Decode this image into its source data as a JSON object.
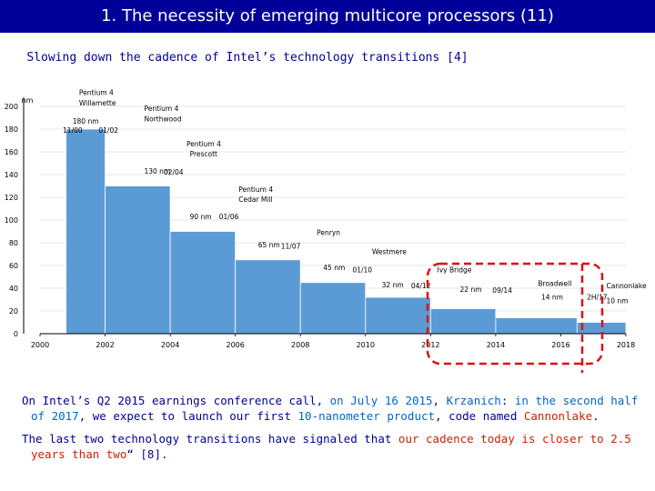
{
  "slide": {
    "title": "1. The necessity of emerging multicore processors (11)",
    "subtitle": "Slowing down the cadence of Intel’s technology transitions [4]"
  },
  "chart_data": {
    "type": "area",
    "ylabel": "nm",
    "xlim": [
      2000,
      2018
    ],
    "ylim": [
      0,
      200
    ],
    "x_ticks": [
      2000,
      2002,
      2004,
      2006,
      2008,
      2010,
      2012,
      2014,
      2016,
      2018
    ],
    "y_ticks": [
      0,
      20,
      40,
      60,
      80,
      100,
      120,
      140,
      160,
      180,
      200
    ],
    "steps": [
      {
        "start": 2000.8,
        "end": 2002.0,
        "value": 180
      },
      {
        "start": 2002.0,
        "end": 2004.0,
        "value": 130
      },
      {
        "start": 2004.0,
        "end": 2006.0,
        "value": 90
      },
      {
        "start": 2006.0,
        "end": 2008.0,
        "value": 65
      },
      {
        "start": 2008.0,
        "end": 2010.0,
        "value": 45
      },
      {
        "start": 2010.0,
        "end": 2012.0,
        "value": 32
      },
      {
        "start": 2012.0,
        "end": 2014.0,
        "value": 22
      },
      {
        "start": 2014.0,
        "end": 2016.5,
        "value": 14
      },
      {
        "start": 2016.5,
        "end": 2018.0,
        "value": 10
      }
    ],
    "annotations": [
      {
        "text": "Pentium 4",
        "x": 2001.2,
        "y": 210
      },
      {
        "text": "Willamette",
        "x": 2001.2,
        "y": 201
      },
      {
        "text": "180 nm",
        "x": 2001.0,
        "y": 185
      },
      {
        "text": "11/00",
        "x": 2000.7,
        "y": 177
      },
      {
        "text": "01/02",
        "x": 2001.8,
        "y": 177
      },
      {
        "text": "Pentium 4",
        "x": 2003.2,
        "y": 196
      },
      {
        "text": "Northwood",
        "x": 2003.2,
        "y": 187
      },
      {
        "text": "Pentium 4",
        "x": 2004.5,
        "y": 165
      },
      {
        "text": "Prescott",
        "x": 2004.6,
        "y": 156
      },
      {
        "text": "130 nm",
        "x": 2003.2,
        "y": 141
      },
      {
        "text": "02/04",
        "x": 2003.8,
        "y": 140
      },
      {
        "text": "Pentium 4",
        "x": 2006.1,
        "y": 125
      },
      {
        "text": "Cedar Mill",
        "x": 2006.1,
        "y": 116
      },
      {
        "text": "90 nm",
        "x": 2004.6,
        "y": 101
      },
      {
        "text": "01/06",
        "x": 2005.5,
        "y": 101
      },
      {
        "text": "Penryn",
        "x": 2008.5,
        "y": 87
      },
      {
        "text": "65 nm",
        "x": 2006.7,
        "y": 76
      },
      {
        "text": "11/07",
        "x": 2007.4,
        "y": 75
      },
      {
        "text": "Westmere",
        "x": 2010.2,
        "y": 70
      },
      {
        "text": "45 nm",
        "x": 2008.7,
        "y": 56
      },
      {
        "text": "01/10",
        "x": 2009.6,
        "y": 54
      },
      {
        "text": "Ivy Bridge",
        "x": 2012.2,
        "y": 54
      },
      {
        "text": "32 nm",
        "x": 2010.5,
        "y": 41
      },
      {
        "text": "04/12",
        "x": 2011.4,
        "y": 40
      },
      {
        "text": "Broadwell",
        "x": 2015.3,
        "y": 42
      },
      {
        "text": "22 nm",
        "x": 2012.9,
        "y": 37
      },
      {
        "text": "09/14",
        "x": 2013.9,
        "y": 36
      },
      {
        "text": "Cannonlake",
        "x": 2017.4,
        "y": 40
      },
      {
        "text": "14 nm",
        "x": 2015.4,
        "y": 30
      },
      {
        "text": "2H/17",
        "x": 2016.8,
        "y": 30
      },
      {
        "text": "10 nm",
        "x": 2017.4,
        "y": 27
      }
    ]
  },
  "captions": {
    "p1_a": "On Intel’s Q2 2015 earnings conference call, ",
    "p1_b": "on July 16 2015",
    "p1_c": ",  ",
    "p1_d": "Krzanich",
    "p1_e": ": ",
    "p1_f": "in the second half of 2017",
    "p1_g": ", we expect to launch our first ",
    "p1_h": "10-nanometer product",
    "p1_i": ", code named ",
    "p1_j": "Cannonlake",
    "p1_k": ".",
    "p2_a": "The last two technology transitions have signaled that ",
    "p2_b": "our cadence today is closer to 2.5 years than two",
    "p2_c": "“ [8]."
  },
  "colors": {
    "title_bg": "#000099",
    "fill": "#5b9bd5",
    "highlight_box": "#dd1111",
    "text_blue": "#000099",
    "text_red": "#cc2200",
    "text_link": "#0066cc"
  }
}
